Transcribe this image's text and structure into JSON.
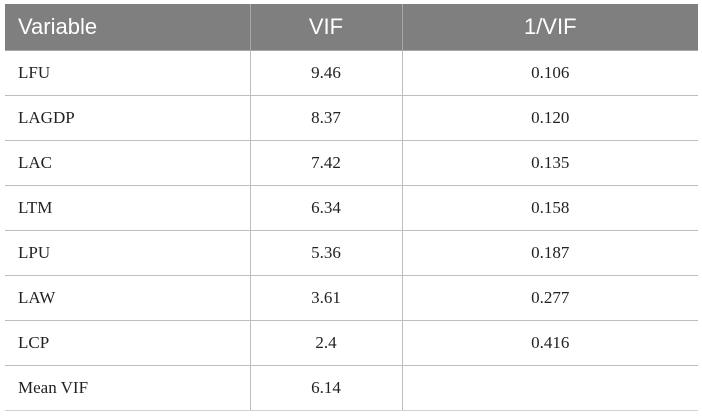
{
  "table": {
    "headers": [
      "Variable",
      "VIF",
      "1/VIF"
    ],
    "rows": [
      {
        "variable": "LFU",
        "vif": "9.46",
        "inv_vif": "0.106"
      },
      {
        "variable": "LAGDP",
        "vif": "8.37",
        "inv_vif": "0.120"
      },
      {
        "variable": "LAC",
        "vif": "7.42",
        "inv_vif": "0.135"
      },
      {
        "variable": "LTM",
        "vif": "6.34",
        "inv_vif": "0.158"
      },
      {
        "variable": "LPU",
        "vif": "5.36",
        "inv_vif": "0.187"
      },
      {
        "variable": "LAW",
        "vif": "3.61",
        "inv_vif": "0.277"
      },
      {
        "variable": "LCP",
        "vif": "2.4",
        "inv_vif": "0.416"
      },
      {
        "variable": "Mean VIF",
        "vif": "6.14",
        "inv_vif": ""
      }
    ]
  },
  "colors": {
    "header_bg": "#7f7f7f",
    "header_text": "#ffffff",
    "grid": "#bdbdbd"
  }
}
